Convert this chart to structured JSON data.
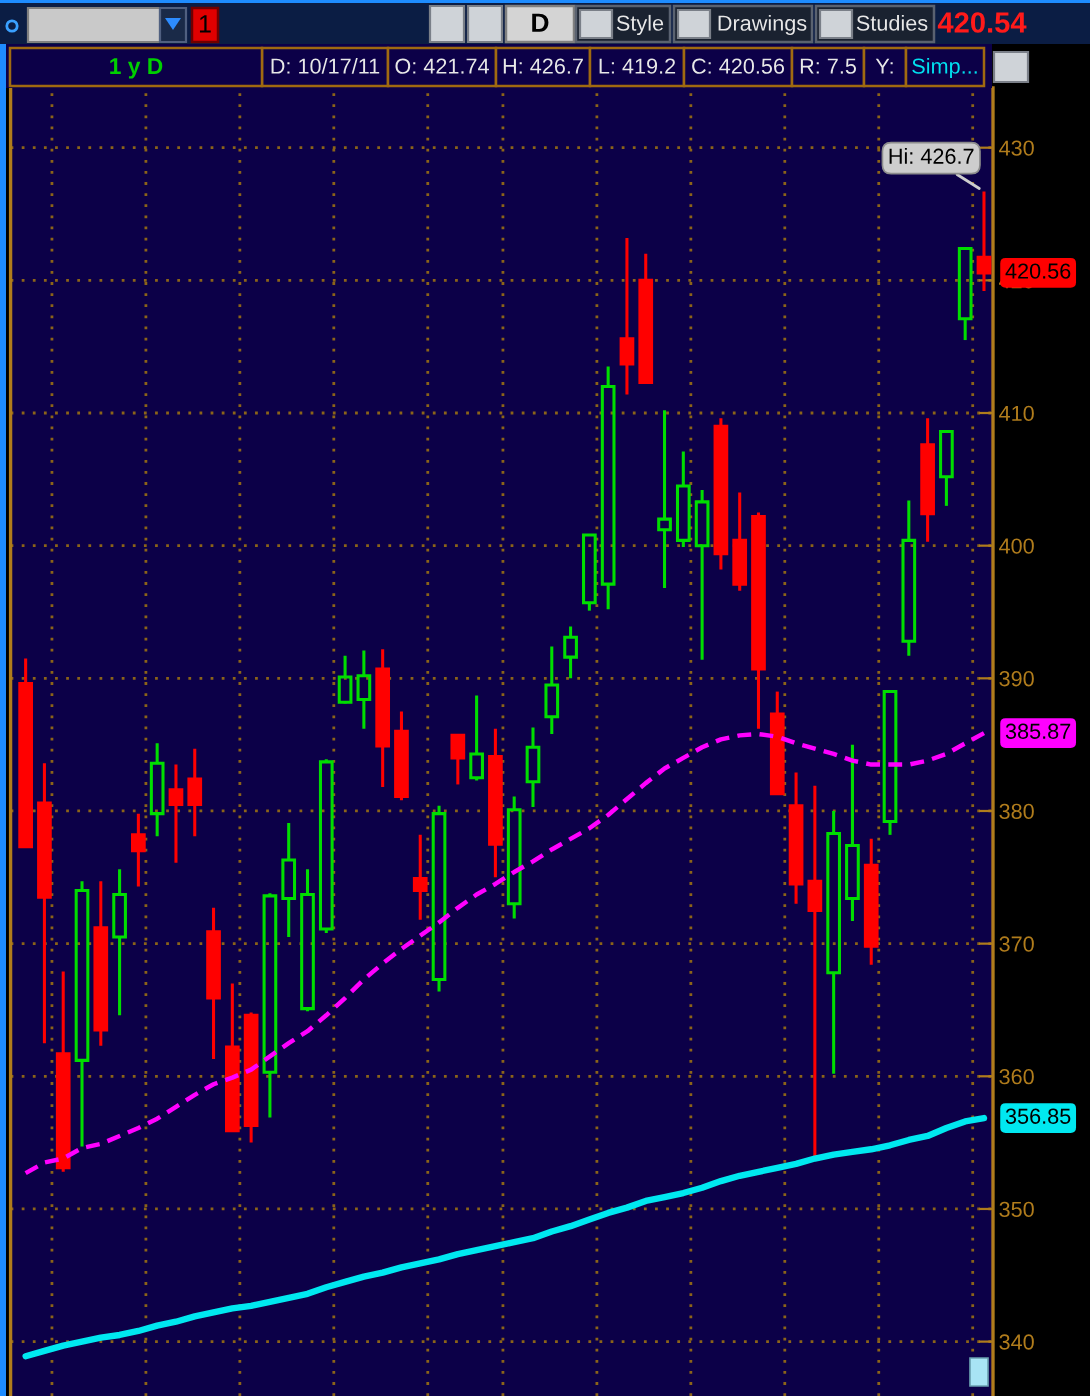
{
  "chart_data": {
    "type": "candlestick",
    "title": "1 y D",
    "annotations": [
      "1",
      "D",
      "Style",
      "Drawings",
      "Studies",
      "420.54",
      "D: 10/17/11",
      "O: 421.74",
      "H: 426.7",
      "L: 419.2",
      "C: 420.56",
      "R: 7.5",
      "Y:",
      "Simp...",
      "Hi: 426.7",
      "420.56"
    ],
    "categories": [
      null,
      null,
      null,
      null,
      null,
      null,
      null,
      null,
      null,
      null,
      null,
      null,
      null,
      null,
      null,
      null,
      null,
      null,
      null,
      null,
      null,
      null,
      null,
      null,
      null,
      null,
      null,
      null,
      null,
      null,
      null,
      null,
      null,
      null,
      null,
      null,
      null,
      null,
      null,
      null,
      null,
      null,
      null,
      null,
      null,
      null,
      null,
      null,
      null,
      null,
      null,
      null
    ],
    "ohlc": [
      [
        389.6,
        391.5,
        377.3,
        377.3
      ],
      [
        380.6,
        383.6,
        362.5,
        373.5
      ],
      [
        361.7,
        367.9,
        352.8,
        353.1
      ],
      [
        361.2,
        374.7,
        354.7,
        374.0
      ],
      [
        371.2,
        374.7,
        362.3,
        363.5
      ],
      [
        370.5,
        375.6,
        364.6,
        373.7
      ],
      [
        378.2,
        379.8,
        374.3,
        377.0
      ],
      [
        379.8,
        385.1,
        378.1,
        383.6
      ],
      [
        381.6,
        383.5,
        376.1,
        380.5
      ],
      [
        382.4,
        384.7,
        378.1,
        380.5
      ],
      [
        370.9,
        372.7,
        361.3,
        365.9
      ],
      [
        362.2,
        367.0,
        355.8,
        355.9
      ],
      [
        364.6,
        364.8,
        355.0,
        356.3
      ],
      [
        360.3,
        373.8,
        356.9,
        373.6
      ],
      [
        373.4,
        379.1,
        370.5,
        376.3
      ],
      [
        365.1,
        375.6,
        364.9,
        373.7
      ],
      [
        371.1,
        383.9,
        370.8,
        383.7
      ],
      [
        388.2,
        391.7,
        388.1,
        390.1
      ],
      [
        388.4,
        392.1,
        386.2,
        390.2
      ],
      [
        390.7,
        392.2,
        381.8,
        384.9
      ],
      [
        386.0,
        387.5,
        380.8,
        381.1
      ],
      [
        374.9,
        378.2,
        371.8,
        374.0
      ],
      [
        367.3,
        380.4,
        366.4,
        379.8
      ],
      [
        385.7,
        385.7,
        382.0,
        384.0
      ],
      [
        382.5,
        388.7,
        382.3,
        384.3
      ],
      [
        384.1,
        386.2,
        375.0,
        377.5
      ],
      [
        373.0,
        381.1,
        371.9,
        380.1
      ],
      [
        382.2,
        386.3,
        380.3,
        384.8
      ],
      [
        387.1,
        392.4,
        385.8,
        389.5
      ],
      [
        391.6,
        393.9,
        390.0,
        393.1
      ],
      [
        395.7,
        400.8,
        395.1,
        400.8
      ],
      [
        397.1,
        413.5,
        395.2,
        412.0
      ],
      [
        415.6,
        423.2,
        411.4,
        413.7
      ],
      [
        420.0,
        422.0,
        412.2,
        412.3
      ],
      [
        401.2,
        410.2,
        396.8,
        402.0
      ],
      [
        400.4,
        407.1,
        399.9,
        404.5
      ],
      [
        400.0,
        404.2,
        391.4,
        403.3
      ],
      [
        409.0,
        409.6,
        398.2,
        399.4
      ],
      [
        400.4,
        404.0,
        396.6,
        397.1
      ],
      [
        402.2,
        402.5,
        386.2,
        390.7
      ],
      [
        387.3,
        389.0,
        381.3,
        381.3
      ],
      [
        380.4,
        382.9,
        373.0,
        374.5
      ],
      [
        374.7,
        381.9,
        354.0,
        372.5
      ],
      [
        367.8,
        380.0,
        360.2,
        378.3
      ],
      [
        373.4,
        385.0,
        371.7,
        377.4
      ],
      [
        375.9,
        377.9,
        368.4,
        369.8
      ],
      [
        379.2,
        389.0,
        378.2,
        389.0
      ],
      [
        392.8,
        403.4,
        391.7,
        400.4
      ],
      [
        407.6,
        409.6,
        400.3,
        402.4
      ],
      [
        405.2,
        408.6,
        403.0,
        408.6
      ],
      [
        417.1,
        422.4,
        415.5,
        422.4
      ],
      [
        421.74,
        426.7,
        419.2,
        420.56
      ]
    ],
    "colors": [
      "#ff0000",
      "#ff0000",
      "#ff0000",
      "#00dd00",
      "#ff0000",
      "#00dd00",
      "#ff0000",
      "#00dd00",
      "#ff0000",
      "#ff0000",
      "#ff0000",
      "#ff0000",
      "#ff0000",
      "#00dd00",
      "#00dd00",
      "#00dd00",
      "#00dd00",
      "#00dd00",
      "#00dd00",
      "#ff0000",
      "#ff0000",
      "#ff0000",
      "#00dd00",
      "#ff0000",
      "#00dd00",
      "#ff0000",
      "#00dd00",
      "#00dd00",
      "#00dd00",
      "#00dd00",
      "#00dd00",
      "#00dd00",
      "#ff0000",
      "#ff0000",
      "#00dd00",
      "#00dd00",
      "#00dd00",
      "#ff0000",
      "#ff0000",
      "#ff0000",
      "#ff0000",
      "#ff0000",
      "#ff0000",
      "#00dd00",
      "#00dd00",
      "#ff0000",
      "#00dd00",
      "#00dd00",
      "#ff0000",
      "#00dd00",
      "#00dd00",
      "#ff0000"
    ],
    "series": [
      {
        "type": "line",
        "color": "#ff00ff",
        "line_style": "dashed",
        "values": [
          352.7,
          353.5,
          353.8,
          354.6,
          354.9,
          355.5,
          356.1,
          356.8,
          357.7,
          358.6,
          359.4,
          359.9,
          360.5,
          361.5,
          362.5,
          363.4,
          364.6,
          365.9,
          367.3,
          368.5,
          369.6,
          370.6,
          371.6,
          372.7,
          373.7,
          374.5,
          375.4,
          376.2,
          377.1,
          377.9,
          378.7,
          379.7,
          380.9,
          382.1,
          383.2,
          384.0,
          384.8,
          385.4,
          385.7,
          385.8,
          385.6,
          385.1,
          384.7,
          384.3,
          383.8,
          383.5,
          383.5,
          383.5,
          383.8,
          384.3,
          385.1,
          385.87
        ],
        "value_labels": [
          null,
          null,
          null,
          null,
          null,
          null,
          null,
          null,
          null,
          null,
          null,
          null,
          null,
          null,
          null,
          null,
          null,
          null,
          null,
          null,
          null,
          null,
          null,
          null,
          null,
          null,
          null,
          null,
          null,
          null,
          null,
          null,
          null,
          null,
          null,
          null,
          null,
          null,
          null,
          null,
          null,
          null,
          null,
          null,
          null,
          null,
          null,
          null,
          null,
          null,
          null,
          "385.87"
        ]
      },
      {
        "type": "line",
        "color": "#00e8f0",
        "line_style": "solid",
        "values": [
          338.9,
          339.3,
          339.7,
          340.0,
          340.3,
          340.5,
          340.8,
          341.2,
          341.5,
          341.9,
          342.2,
          342.5,
          342.7,
          343.0,
          343.3,
          343.6,
          344.1,
          344.5,
          344.9,
          345.2,
          345.6,
          345.9,
          346.2,
          346.6,
          346.9,
          347.2,
          347.5,
          347.8,
          348.3,
          348.7,
          349.2,
          349.7,
          350.1,
          350.6,
          350.9,
          351.2,
          351.6,
          352.1,
          352.5,
          352.8,
          353.1,
          353.4,
          353.8,
          354.1,
          354.3,
          354.5,
          354.8,
          355.2,
          355.5,
          356.1,
          356.6,
          356.85
        ],
        "value_labels": [
          null,
          null,
          null,
          null,
          null,
          null,
          null,
          null,
          null,
          null,
          null,
          null,
          null,
          null,
          null,
          null,
          null,
          null,
          null,
          null,
          null,
          null,
          null,
          null,
          null,
          null,
          null,
          null,
          null,
          null,
          null,
          null,
          null,
          null,
          null,
          null,
          null,
          null,
          null,
          null,
          null,
          null,
          null,
          null,
          null,
          null,
          null,
          null,
          null,
          null,
          null,
          "356.85"
        ]
      }
    ],
    "ylim": [
      335.9,
      434.5
    ],
    "yticks": [
      340,
      350,
      360,
      370,
      380,
      390,
      400,
      410,
      420,
      430
    ],
    "grid": true,
    "tick_labels": "y"
  }
}
